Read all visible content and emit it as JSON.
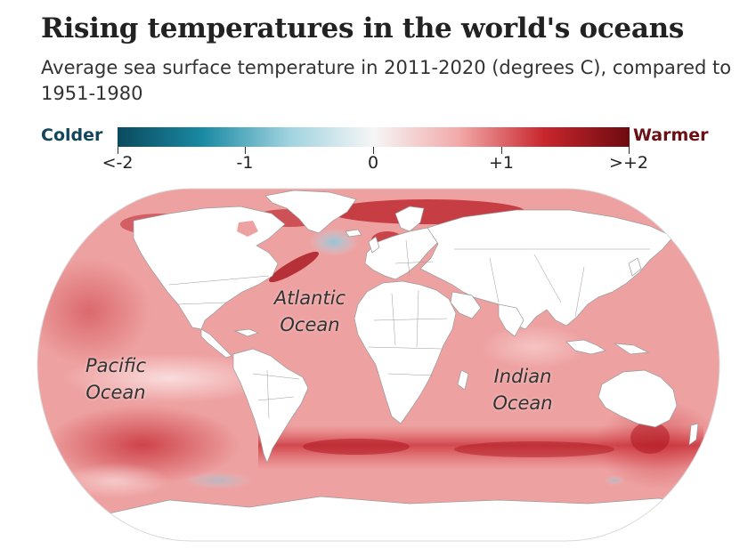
{
  "title": "Rising temperatures in the world's oceans",
  "subtitle": "Average sea surface temperature in 2011-2020 (degrees C), compared to 1951-1980",
  "legend": {
    "colder_label": "Colder",
    "warmer_label": "Warmer",
    "colder_color": "#11465c",
    "warmer_color": "#6a1014",
    "ticks": [
      "<-2",
      "-1",
      "0",
      "+1",
      ">+2"
    ],
    "gradient_colors": [
      "#0b4a5e",
      "#1a8aa3",
      "#9fd2df",
      "#f6f6f6",
      "#f2a9a9",
      "#c8262d",
      "#6e0a10"
    ]
  },
  "oceans": {
    "atlantic": [
      "Atlantic",
      "Ocean"
    ],
    "pacific": [
      "Pacific",
      "Ocean"
    ],
    "indian": [
      "Indian",
      "Ocean"
    ]
  },
  "map_colors": {
    "ocean_base": "#eea1a1",
    "land": "#ffffff",
    "land_border": "#9a9a9a",
    "warm_hotspot": "#b81c25",
    "cool_spot": "#a9d4e2"
  }
}
